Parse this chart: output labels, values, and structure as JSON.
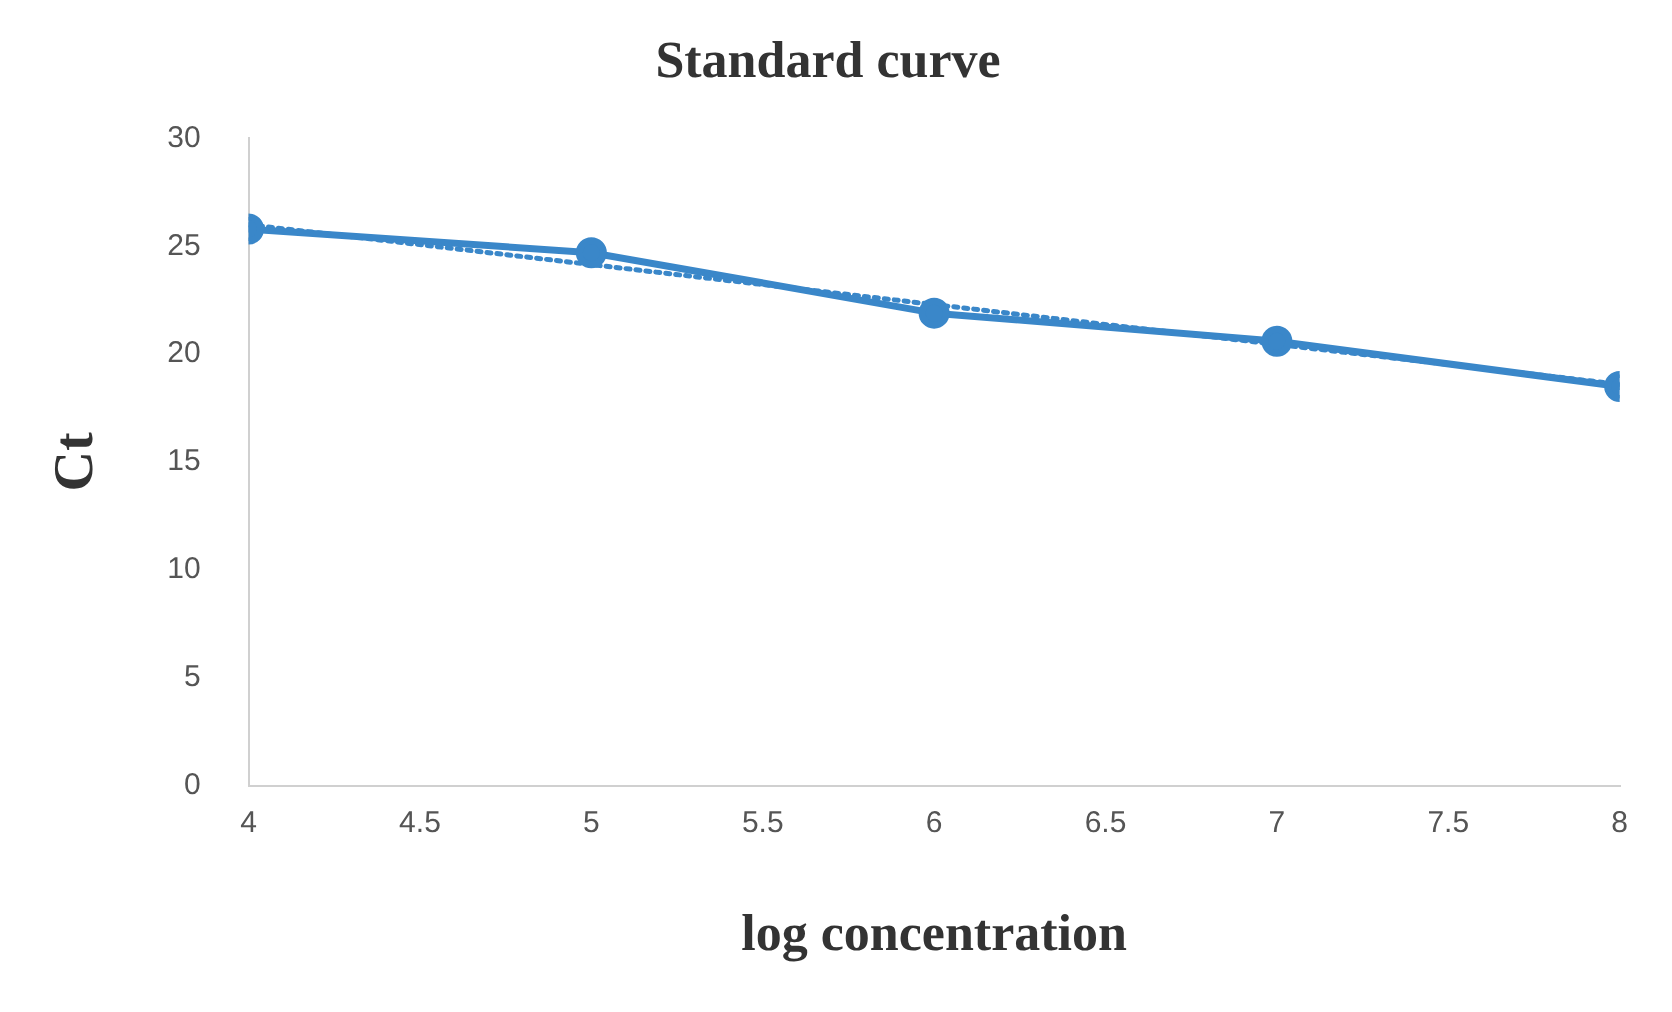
{
  "chart_data": {
    "type": "line",
    "title": "Standard curve",
    "xlabel": "log concentration",
    "ylabel": "Ct",
    "x": [
      4,
      5,
      6,
      7,
      8
    ],
    "series": [
      {
        "color": "#3a87c9",
        "values": [
          25.8,
          24.7,
          21.9,
          20.6,
          18.5
        ],
        "marker": "circle",
        "line_style": "solid"
      },
      {
        "type": "line",
        "x": [
          4,
          8
        ],
        "color": "#3a87c9",
        "values": [
          26.0,
          18.6
        ],
        "marker": "none",
        "line_style": "dotted"
      }
    ],
    "xlim": [
      4,
      8
    ],
    "xticks": [
      4,
      4.5,
      5,
      5.5,
      6,
      6.5,
      7,
      7.5,
      8
    ],
    "ylim": [
      0,
      30
    ],
    "yticks": [
      0,
      5,
      10,
      15,
      20,
      25,
      30
    ],
    "grid": false,
    "legend": false
  }
}
